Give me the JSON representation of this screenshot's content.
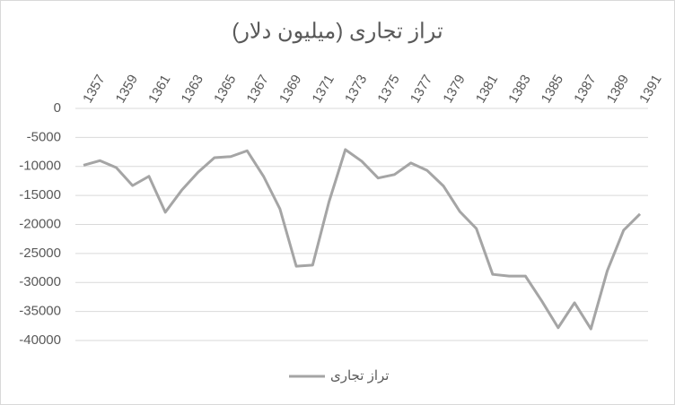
{
  "chart_data": {
    "type": "line",
    "title": "تراز تجاری (میلیون دلار)",
    "categories": [
      "1357",
      null,
      "1359",
      null,
      "1361",
      null,
      "1363",
      null,
      "1365",
      null,
      "1367",
      null,
      "1369",
      null,
      "1371",
      null,
      "1373",
      null,
      "1375",
      null,
      "1377",
      null,
      "1379",
      null,
      "1381",
      null,
      "1383",
      null,
      "1385",
      null,
      "1387",
      null,
      "1389",
      null,
      "1391"
    ],
    "series": [
      {
        "name": "تراز تجاری",
        "color": "#a5a5a5",
        "values": [
          -9800,
          -9000,
          -10200,
          -13300,
          -11700,
          -17900,
          -14100,
          -11000,
          -8500,
          -8300,
          -7300,
          -11700,
          -17300,
          -27200,
          -27000,
          -16100,
          -7100,
          -9100,
          -12000,
          -11400,
          -9400,
          -10700,
          -13400,
          -17800,
          -20700,
          -28600,
          -28900,
          -28900,
          -33200,
          -37800,
          -33500,
          -38000,
          -28000,
          -21000,
          -18200
        ]
      }
    ],
    "ylim": [
      -40000,
      0
    ],
    "yticks": [
      0,
      -5000,
      -10000,
      -15000,
      -20000,
      -25000,
      -30000,
      -35000,
      -40000
    ],
    "grid": true,
    "legend": "bottom"
  }
}
